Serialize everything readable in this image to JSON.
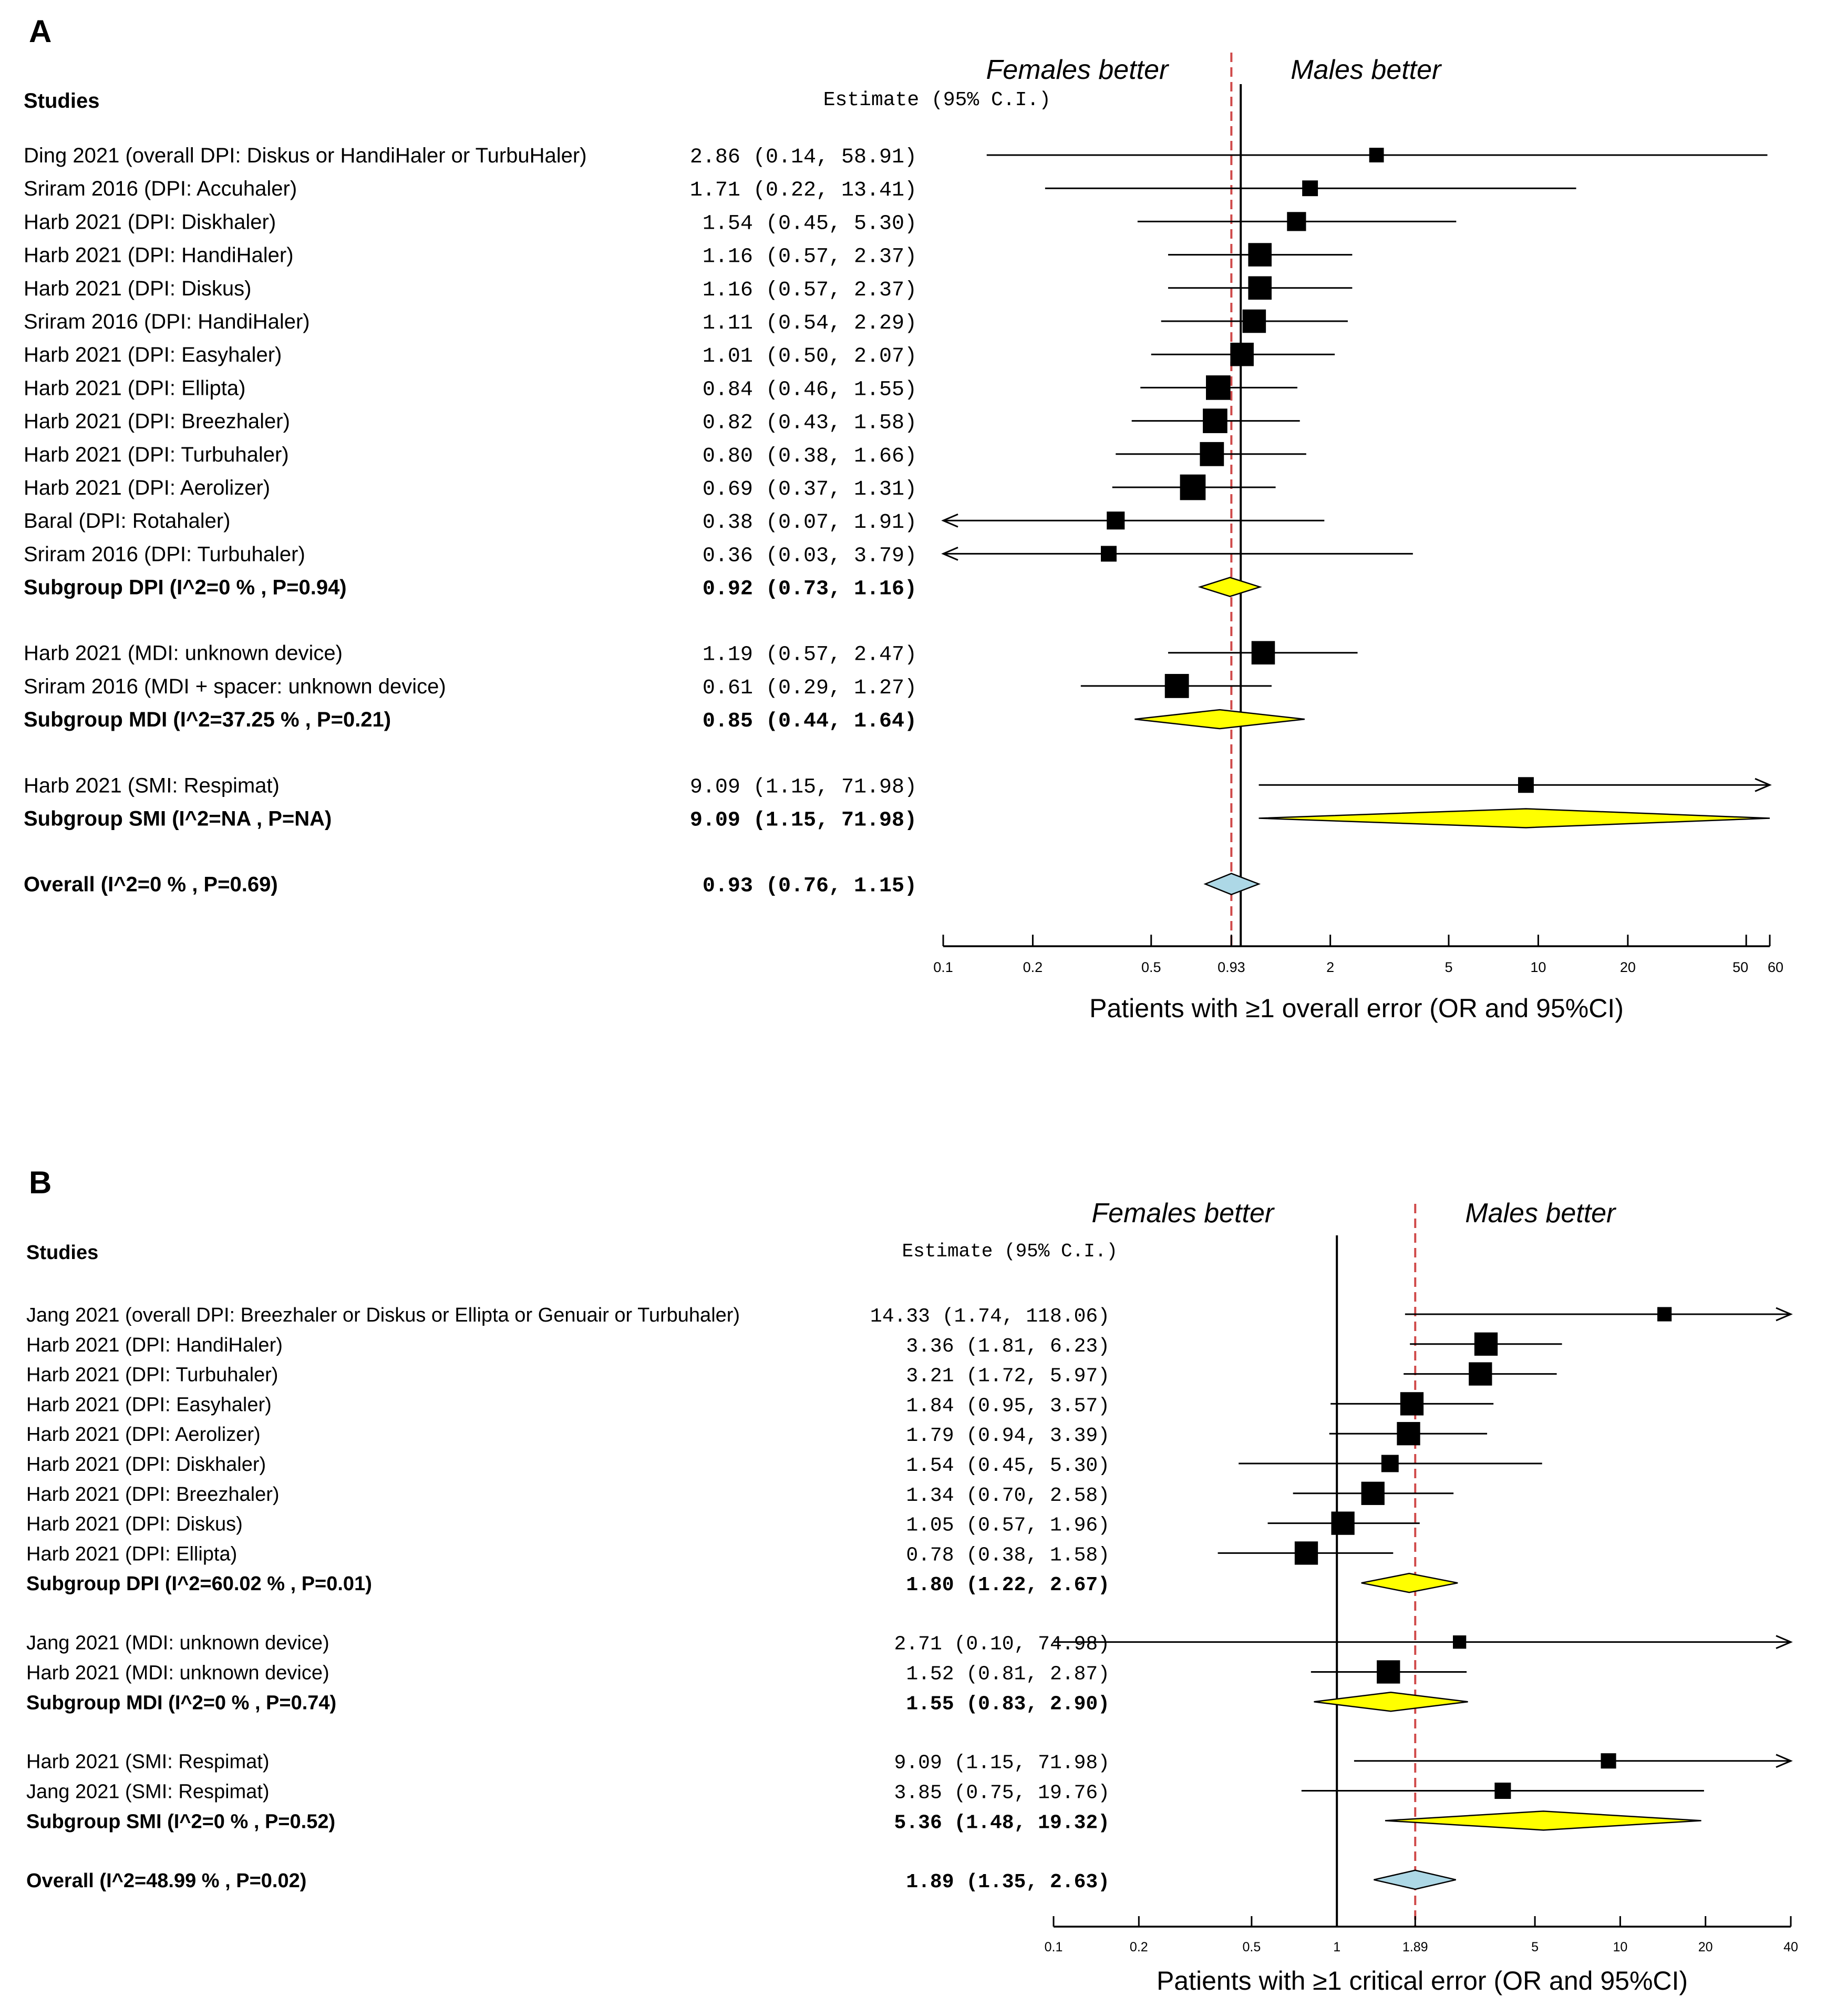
{
  "colors": {
    "subgroup_diamond": "#ffff00",
    "overall_diamond": "#add8e6",
    "estimate_line": "#d04a4a",
    "ink": "#000000"
  },
  "chart_data": [
    {
      "type": "forest",
      "panel_label": "A",
      "header_studies": "Studies",
      "header_estimate": "Estimate (95% C.I.)",
      "favor_left": "Females better",
      "favor_right": "Males better",
      "xlabel": "Patients with ≥1 overall error (OR and 95%CI)",
      "xlim": [
        0.1,
        60
      ],
      "ticks": [
        "0.1",
        "0.2",
        "0.5",
        "0.93",
        "2",
        "5",
        "10",
        "20",
        "50",
        "60"
      ],
      "pooled_estimate": 0.93,
      "rows": [
        {
          "label": "Ding 2021 (overall DPI: Diskus or HandiHaler or TurbuHaler)",
          "est_text": "2.86 (0.14, 58.91)",
          "est": 2.86,
          "lo": 0.14,
          "hi": 58.91,
          "kind": "study",
          "size": 0.35
        },
        {
          "label": "Sriram 2016 (DPI: Accuhaler)",
          "est_text": "1.71 (0.22, 13.41)",
          "est": 1.71,
          "lo": 0.22,
          "hi": 13.41,
          "kind": "study",
          "size": 0.4
        },
        {
          "label": "Harb 2021 (DPI: Diskhaler)",
          "est_text": "1.54 (0.45,  5.30)",
          "est": 1.54,
          "lo": 0.45,
          "hi": 5.3,
          "kind": "study",
          "size": 0.55
        },
        {
          "label": "Harb 2021 (DPI: HandiHaler)",
          "est_text": "1.16 (0.57,  2.37)",
          "est": 1.16,
          "lo": 0.57,
          "hi": 2.37,
          "kind": "study",
          "size": 0.75
        },
        {
          "label": "Harb 2021 (DPI: Diskus)",
          "est_text": "1.16 (0.57,  2.37)",
          "est": 1.16,
          "lo": 0.57,
          "hi": 2.37,
          "kind": "study",
          "size": 0.75
        },
        {
          "label": "Sriram 2016 (DPI: HandiHaler)",
          "est_text": "1.11 (0.54,  2.29)",
          "est": 1.11,
          "lo": 0.54,
          "hi": 2.29,
          "kind": "study",
          "size": 0.75
        },
        {
          "label": "Harb 2021 (DPI: Easyhaler)",
          "est_text": "1.01 (0.50,  2.07)",
          "est": 1.01,
          "lo": 0.5,
          "hi": 2.07,
          "kind": "study",
          "size": 0.75
        },
        {
          "label": "Harb 2021 (DPI: Ellipta)",
          "est_text": "0.84 (0.46,  1.55)",
          "est": 0.84,
          "lo": 0.46,
          "hi": 1.55,
          "kind": "study",
          "size": 0.8
        },
        {
          "label": "Harb 2021 (DPI: Breezhaler)",
          "est_text": "0.82 (0.43,  1.58)",
          "est": 0.82,
          "lo": 0.43,
          "hi": 1.58,
          "kind": "study",
          "size": 0.8
        },
        {
          "label": "Harb 2021 (DPI: Turbuhaler)",
          "est_text": "0.80 (0.38,  1.66)",
          "est": 0.8,
          "lo": 0.38,
          "hi": 1.66,
          "kind": "study",
          "size": 0.78
        },
        {
          "label": "Harb 2021 (DPI: Aerolizer)",
          "est_text": "0.69 (0.37,  1.31)",
          "est": 0.69,
          "lo": 0.37,
          "hi": 1.31,
          "kind": "study",
          "size": 0.85
        },
        {
          "label": "Baral (DPI: Rotahaler)",
          "est_text": "0.38 (0.07,  1.91)",
          "est": 0.38,
          "lo": 0.07,
          "hi": 1.91,
          "kind": "study",
          "size": 0.5
        },
        {
          "label": "Sriram 2016 (DPI: Turbuhaler)",
          "est_text": "0.36 (0.03,  3.79)",
          "est": 0.36,
          "lo": 0.03,
          "hi": 3.79,
          "kind": "study",
          "size": 0.4
        },
        {
          "label": "Subgroup DPI (I^2=0 % , P=0.94)",
          "est_text": "0.92 (0.73,  1.16)",
          "est": 0.92,
          "lo": 0.73,
          "hi": 1.16,
          "kind": "subgroup"
        },
        {
          "kind": "gap"
        },
        {
          "label": "Harb 2021 (MDI: unknown device)",
          "est_text": "1.19 (0.57,  2.47)",
          "est": 1.19,
          "lo": 0.57,
          "hi": 2.47,
          "kind": "study",
          "size": 0.75
        },
        {
          "label": "Sriram 2016 (MDI + spacer: unknown device)",
          "est_text": "0.61 (0.29,  1.27)",
          "est": 0.61,
          "lo": 0.29,
          "hi": 1.27,
          "kind": "study",
          "size": 0.78
        },
        {
          "label": "Subgroup MDI (I^2=37.25 % , P=0.21)",
          "est_text": "0.85 (0.44,  1.64)",
          "est": 0.85,
          "lo": 0.44,
          "hi": 1.64,
          "kind": "subgroup"
        },
        {
          "kind": "gap"
        },
        {
          "label": "Harb 2021 (SMI: Respimat)",
          "est_text": "9.09 (1.15, 71.98)",
          "est": 9.09,
          "lo": 1.15,
          "hi": 71.98,
          "kind": "study",
          "size": 0.4
        },
        {
          "label": "Subgroup SMI (I^2=NA , P=NA)",
          "est_text": "9.09 (1.15, 71.98)",
          "est": 9.09,
          "lo": 1.15,
          "hi": 71.98,
          "kind": "subgroup"
        },
        {
          "kind": "gap"
        },
        {
          "label": "Overall (I^2=0 % , P=0.69)",
          "est_text": "0.93 (0.76,  1.15)",
          "est": 0.93,
          "lo": 0.76,
          "hi": 1.15,
          "kind": "overall"
        }
      ]
    },
    {
      "type": "forest",
      "panel_label": "B",
      "header_studies": "Studies",
      "header_estimate": "Estimate (95% C.I.)",
      "favor_left": "Females better",
      "favor_right": "Males better",
      "xlabel": "Patients with ≥1 critical error (OR and 95%CI)",
      "xlim": [
        0.1,
        40
      ],
      "ticks": [
        "0.1",
        "0.2",
        "0.5",
        "1",
        "1.89",
        "5",
        "10",
        "20",
        "40"
      ],
      "pooled_estimate": 1.89,
      "rows": [
        {
          "label": "Jang 2021 (overall DPI: Breezhaler or Diskus or Ellipta or Genuair or Turbuhaler)",
          "est_text": "14.33 (1.74, 118.06)",
          "est": 14.33,
          "lo": 1.74,
          "hi": 118.06,
          "kind": "study",
          "size": 0.4
        },
        {
          "label": "Harb 2021 (DPI: HandiHaler)",
          "est_text": "3.36 (1.81,   6.23)",
          "est": 3.36,
          "lo": 1.81,
          "hi": 6.23,
          "kind": "study",
          "size": 0.85
        },
        {
          "label": "Harb 2021 (DPI: Turbuhaler)",
          "est_text": "3.21 (1.72,   5.97)",
          "est": 3.21,
          "lo": 1.72,
          "hi": 5.97,
          "kind": "study",
          "size": 0.85
        },
        {
          "label": "Harb 2021 (DPI: Easyhaler)",
          "est_text": "1.84 (0.95,   3.57)",
          "est": 1.84,
          "lo": 0.95,
          "hi": 3.57,
          "kind": "study",
          "size": 0.85
        },
        {
          "label": "Harb 2021 (DPI: Aerolizer)",
          "est_text": "1.79 (0.94,   3.39)",
          "est": 1.79,
          "lo": 0.94,
          "hi": 3.39,
          "kind": "study",
          "size": 0.85
        },
        {
          "label": "Harb 2021 (DPI: Diskhaler)",
          "est_text": "1.54 (0.45,   5.30)",
          "est": 1.54,
          "lo": 0.45,
          "hi": 5.3,
          "kind": "study",
          "size": 0.55
        },
        {
          "label": "Harb 2021 (DPI: Breezhaler)",
          "est_text": "1.34 (0.70,   2.58)",
          "est": 1.34,
          "lo": 0.7,
          "hi": 2.58,
          "kind": "study",
          "size": 0.85
        },
        {
          "label": "Harb 2021 (DPI: Diskus)",
          "est_text": "1.05 (0.57,   1.96)",
          "est": 1.05,
          "lo": 0.57,
          "hi": 1.96,
          "kind": "study",
          "size": 0.85
        },
        {
          "label": "Harb 2021 (DPI: Ellipta)",
          "est_text": "0.78 (0.38,   1.58)",
          "est": 0.78,
          "lo": 0.38,
          "hi": 1.58,
          "kind": "study",
          "size": 0.85
        },
        {
          "label": "Subgroup DPI (I^2=60.02 % , P=0.01)",
          "est_text": "1.80 (1.22,   2.67)",
          "est": 1.8,
          "lo": 1.22,
          "hi": 2.67,
          "kind": "subgroup"
        },
        {
          "kind": "gap"
        },
        {
          "label": "Jang 2021 (MDI: unknown device)",
          "est_text": "2.71 (0.10,  74.98)",
          "est": 2.71,
          "lo": 0.1,
          "hi": 74.98,
          "kind": "study",
          "size": 0.35
        },
        {
          "label": "Harb 2021 (MDI: unknown device)",
          "est_text": "1.52 (0.81,   2.87)",
          "est": 1.52,
          "lo": 0.81,
          "hi": 2.87,
          "kind": "study",
          "size": 0.85
        },
        {
          "label": "Subgroup MDI (I^2=0 % , P=0.74)",
          "est_text": "1.55 (0.83,   2.90)",
          "est": 1.55,
          "lo": 0.83,
          "hi": 2.9,
          "kind": "subgroup"
        },
        {
          "kind": "gap"
        },
        {
          "label": "Harb 2021 (SMI: Respimat)",
          "est_text": "9.09 (1.15,  71.98)",
          "est": 9.09,
          "lo": 1.15,
          "hi": 71.98,
          "kind": "study",
          "size": 0.45
        },
        {
          "label": "Jang 2021 (SMI: Respimat)",
          "est_text": "3.85 (0.75,  19.76)",
          "est": 3.85,
          "lo": 0.75,
          "hi": 19.76,
          "kind": "study",
          "size": 0.5
        },
        {
          "label": "Subgroup SMI (I^2=0 % , P=0.52)",
          "est_text": "5.36 (1.48,  19.32)",
          "est": 5.36,
          "lo": 1.48,
          "hi": 19.32,
          "kind": "subgroup"
        },
        {
          "kind": "gap"
        },
        {
          "label": "Overall (I^2=48.99 % , P=0.02)",
          "est_text": "1.89 (1.35,   2.63)",
          "est": 1.89,
          "lo": 1.35,
          "hi": 2.63,
          "kind": "overall"
        }
      ]
    }
  ]
}
